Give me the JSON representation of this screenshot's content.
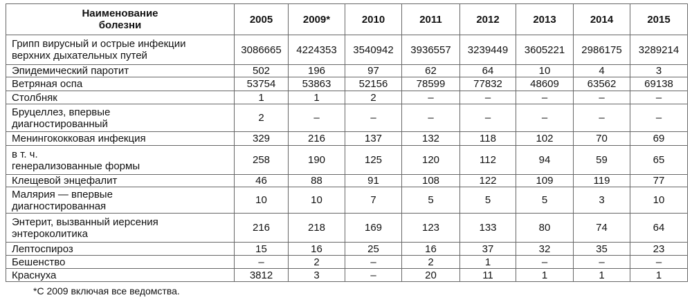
{
  "table": {
    "header": [
      "Наименование\nболезни",
      "2005",
      "2009*",
      "2010",
      "2011",
      "2012",
      "2013",
      "2014",
      "2015"
    ],
    "rows": [
      [
        "Грипп вирусный и острые инфекции\nверхних дыхательных путей",
        "3086665",
        "4224353",
        "3540942",
        "3936557",
        "3239449",
        "3605221",
        "2986175",
        "3289214"
      ],
      [
        "Эпидемический паротит",
        "502",
        "196",
        "97",
        "62",
        "64",
        "10",
        "4",
        "3"
      ],
      [
        "Ветряная оспа",
        "53754",
        "53863",
        "52156",
        "78599",
        "77832",
        "48609",
        "63562",
        "69138"
      ],
      [
        "Столбняк",
        "1",
        "1",
        "2",
        "–",
        "–",
        "–",
        "–",
        "–"
      ],
      [
        "Бруцеллез, впервые\nдиагностированный",
        "2",
        "–",
        "–",
        "–",
        "–",
        "–",
        "–",
        "–"
      ],
      [
        "Менингококковая инфекция",
        "329",
        "216",
        "137",
        "132",
        "118",
        "102",
        "70",
        "69"
      ],
      [
        "в т. ч.\nгенерализованные формы",
        "258",
        "190",
        "125",
        "120",
        "112",
        "94",
        "59",
        "65"
      ],
      [
        "Клещевой энцефалит",
        "46",
        "88",
        "91",
        "108",
        "122",
        "109",
        "119",
        "77"
      ],
      [
        "Малярия — впервые\nдиагностированная",
        "10",
        "10",
        "7",
        "5",
        "5",
        "5",
        "3",
        "10"
      ],
      [
        "Энтерит, вызванный иерсения\nэнтероколитика",
        "216",
        "218",
        "169",
        "123",
        "133",
        "80",
        "74",
        "64"
      ],
      [
        "Лептоспироз",
        "15",
        "16",
        "25",
        "16",
        "37",
        "32",
        "35",
        "23"
      ],
      [
        "Бешенство",
        "–",
        "2",
        "–",
        "2",
        "1",
        "–",
        "–",
        "–"
      ],
      [
        "Краснуха",
        "3812",
        "3",
        "–",
        "20",
        "11",
        "1",
        "1",
        "1"
      ]
    ]
  },
  "footnote": "*С 2009 включая все ведомства."
}
